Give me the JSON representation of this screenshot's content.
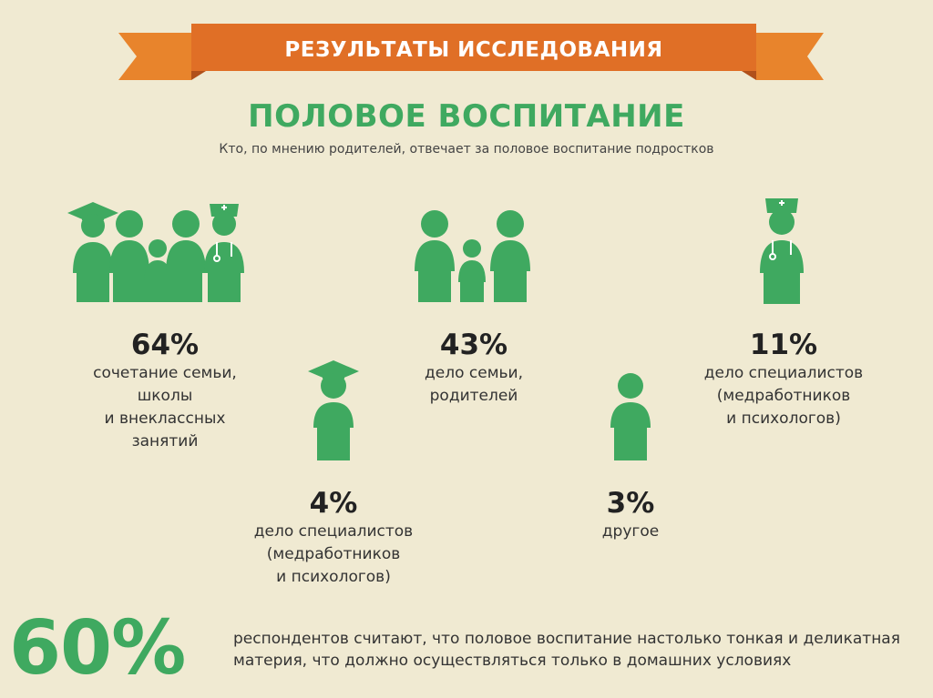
{
  "banner": {
    "title": "РЕЗУЛЬТАТЫ ИССЛЕДОВАНИЯ"
  },
  "heading": {
    "title": "ПОЛОВОЕ ВОСПИТАНИЕ",
    "subtitle": "Кто, по мнению родителей, отвечает за половое воспитание подростков"
  },
  "colors": {
    "accent_green": "#3fa960",
    "banner_orange": "#e8792a",
    "banner_dark": "#c95e1a",
    "background": "#f0ead2"
  },
  "stats": [
    {
      "value": "64%",
      "lines": [
        "сочетание семьи,",
        "школы",
        "и внеклассных",
        "занятий"
      ],
      "icon": "teacher-family-doctor-group-icon"
    },
    {
      "value": "43%",
      "lines": [
        "дело семьи,",
        "родителей"
      ],
      "icon": "family-icon"
    },
    {
      "value": "11%",
      "lines": [
        "дело специалистов",
        "(медработников",
        "и психологов)"
      ],
      "icon": "doctor-icon"
    },
    {
      "value": "4%",
      "lines": [
        "дело специалистов",
        "(медработников",
        "и психологов)"
      ],
      "icon": "teacher-icon"
    },
    {
      "value": "3%",
      "lines": [
        "другое"
      ],
      "icon": "person-icon"
    }
  ],
  "footer": {
    "value": "60%",
    "lines": [
      "респондентов считают, что половое воспитание настолько тонкая и деликатная",
      "материя, что должно осуществляться только в домашних условиях"
    ]
  }
}
